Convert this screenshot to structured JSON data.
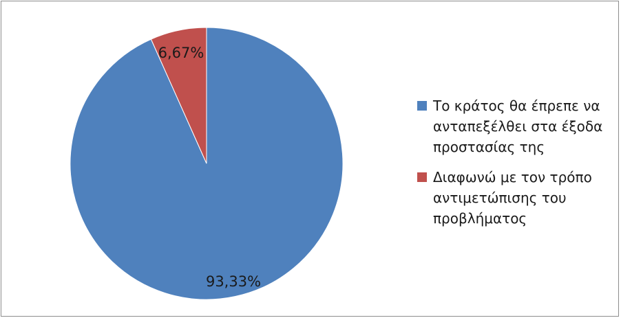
{
  "chart_data": {
    "type": "pie",
    "title": "",
    "slices": [
      {
        "label": "Το κράτος θα έπρεπε να ανταπεξέλθει στα έξοδα προστασίας της",
        "value": 93.33,
        "display": "93,33%",
        "color": "#4f81bd"
      },
      {
        "label": "Διαφωνώ με τον τρόπο αντιμετώπισης του προβλήματος",
        "value": 6.67,
        "display": "6,67%",
        "color": "#c0504d"
      }
    ],
    "legend_position": "right",
    "start_angle_deg": 0,
    "direction": "counterclockwise-first-slice-large"
  },
  "legend": {
    "items": [
      {
        "lines": [
          "Το κράτος θα έπρεπε να",
          "ανταπεξέλθει στα έξοδα",
          "προστασίας της"
        ]
      },
      {
        "lines": [
          "Διαφωνώ με τον τρόπο",
          "αντιμετώπισης του",
          "προβλήματος"
        ]
      }
    ]
  }
}
